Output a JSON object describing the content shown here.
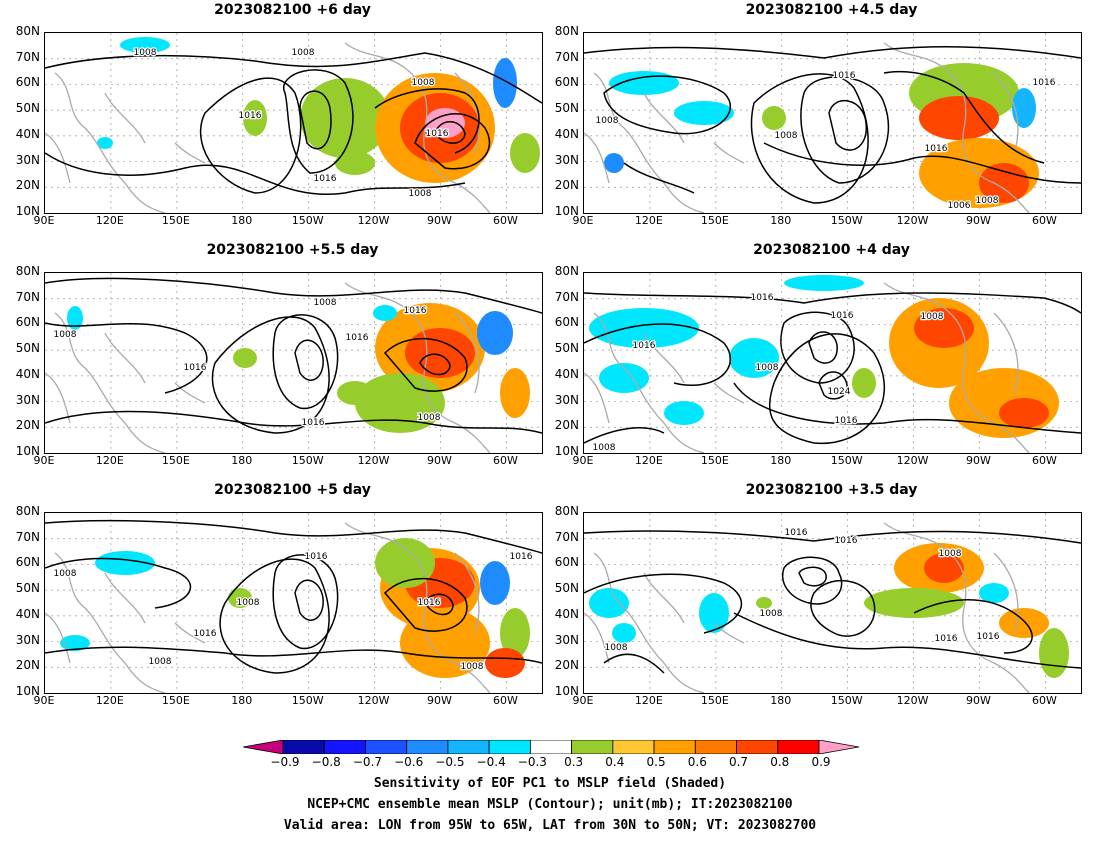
{
  "panels": [
    {
      "id": "p1",
      "title": "2023082100  +6 day",
      "labels": [
        "1008",
        "1008",
        "1008",
        "1016",
        "1016",
        "1016",
        "1008"
      ]
    },
    {
      "id": "p2",
      "title": "2023082100  +4.5  day",
      "labels": [
        "1016",
        "1016",
        "1008",
        "1008",
        "1016",
        "1008",
        "1006"
      ]
    },
    {
      "id": "p3",
      "title": "2023082100  +5.5  day",
      "labels": [
        "1008",
        "1008",
        "1016",
        "1016",
        "1016",
        "1016",
        "1008"
      ]
    },
    {
      "id": "p4",
      "title": "2023082100  +4  day",
      "labels": [
        "1008",
        "1016",
        "1016",
        "1016",
        "1008",
        "1024",
        "1016",
        "1008"
      ]
    },
    {
      "id": "p5",
      "title": "2023082100  +5  day",
      "labels": [
        "1008",
        "1016",
        "1008",
        "1016",
        "1008",
        "1016",
        "1016",
        "1008"
      ]
    },
    {
      "id": "p6",
      "title": "2023082100  +3.5  day",
      "labels": [
        "1016",
        "1016",
        "1008",
        "1008",
        "1016",
        "1016",
        "1008"
      ]
    }
  ],
  "axes": {
    "lat": [
      "80N",
      "70N",
      "60N",
      "50N",
      "40N",
      "30N",
      "20N",
      "10N"
    ],
    "lon": [
      "90E",
      "120E",
      "150E",
      "180",
      "150W",
      "120W",
      "90W",
      "60W"
    ]
  },
  "colorbar": {
    "ticks": [
      "−0.9",
      "−0.8",
      "−0.7",
      "−0.6",
      "−0.5",
      "−0.4",
      "−0.3",
      "0.3",
      "0.4",
      "0.5",
      "0.6",
      "0.7",
      "0.8",
      "0.9"
    ],
    "colors": [
      "#0a0aa8",
      "#1414ff",
      "#1e50ff",
      "#1e8cff",
      "#14b4ff",
      "#00e6ff",
      "#ffffff",
      "#96cd2d",
      "#ffc832",
      "#ffa000",
      "#ff7800",
      "#ff4600",
      "#ff0000"
    ],
    "under_color": "#c8007a",
    "over_color": "#ffa0c8"
  },
  "caption": {
    "line1": "Sensitivity of EOF PC1 to MSLP field (Shaded)",
    "line2": "NCEP+CMC ensemble mean MSLP (Contour); unit(mb); IT:2023082100",
    "line3": "Valid area: LON from 95W to 65W, LAT from 30N to 50N; VT: 2023082700"
  }
}
